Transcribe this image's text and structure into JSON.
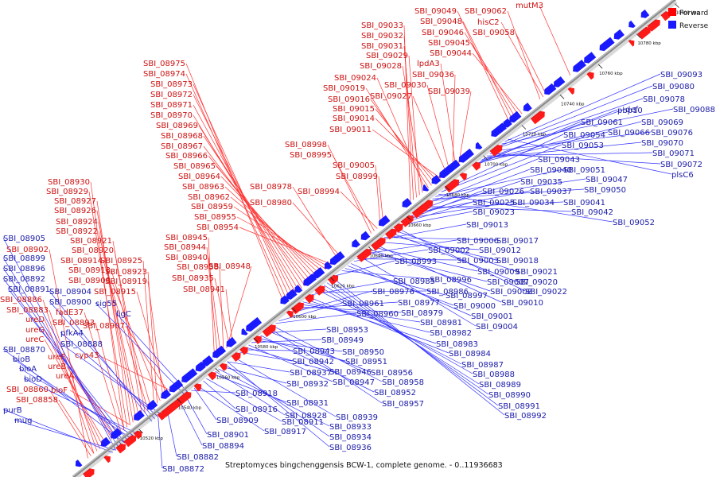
{
  "caption": "Streptomyces bingchenggensis BCW-1, complete genome. - 0..11936683",
  "legend": {
    "forward": "Forward",
    "reverse": "Reverse",
    "forward_color": "#ff0000",
    "reverse_color": "#1a1aff"
  },
  "colors": {
    "axis": "#888888",
    "forward_line": "#ff3333",
    "reverse_line": "#3333ff",
    "forward_label": "#cc1111",
    "reverse_label": "#1a1aa8"
  },
  "ticks": [
    "10520 kbp",
    "10540 kbp",
    "10560 kbp",
    "10580 kbp",
    "10600 kbp",
    "10620 kbp",
    "10640 kbp",
    "10660 kbp",
    "10680 kbp",
    "10700 kbp",
    "10720 kbp",
    "10740 kbp",
    "10760 kbp",
    "10780 kbp",
    "10800 kbp"
  ],
  "forward_labels": [
    "SBI_08975",
    "SBI_08974",
    "SBI_08973",
    "SBI_08972",
    "SBI_08971",
    "SBI_08970",
    "SBI_08969",
    "SBI_08968",
    "SBI_08967",
    "SBI_08966",
    "SBI_08965",
    "SBI_08964",
    "SBI_08963",
    "SBI_08962",
    "SBI_08959",
    "SBI_08955",
    "SBI_08954",
    "SBI_08978",
    "SBI_08980",
    "SBI_08930",
    "SBI_08929",
    "SBI_08927",
    "SBI_08926",
    "SBI_08924",
    "SBI_08922",
    "SBI_08921",
    "SBI_08920",
    "SBI_08914",
    "SBI_08925",
    "SBI_08913",
    "SBI_08923",
    "SBI_08908",
    "SBI_08919",
    "SBI_08915",
    "SBI_08945",
    "SBI_08944",
    "SBI_08940",
    "SBI_08938",
    "SBI_08948",
    "SBI_08935",
    "SBI_08941",
    "SBI_08902",
    "SBI_08886",
    "SBI_08883",
    "ureD",
    "ureG",
    "ureC",
    "ureF",
    "ureB",
    "ureA",
    "fadE37",
    "SBI_08893",
    "SBI_08907",
    "SBI_08860",
    "SBI_08858",
    "bioF",
    "cyp43",
    "SBI_09033",
    "SBI_09032",
    "SBI_09031",
    "SBI_09029",
    "SBI_09028",
    "SBI_09024",
    "SBI_09019",
    "SBI_09016",
    "SBI_09015",
    "SBI_09014",
    "SBI_09011",
    "SBI_09027",
    "SBI_09030",
    "SBI_09036",
    "lpdA3",
    "SBI_09039",
    "SBI_09049",
    "SBI_09048",
    "SBI_09046",
    "SBI_09045",
    "SBI_09044",
    "SBI_09062",
    "hisC2",
    "SBI_09058",
    "mutM3",
    "SBI_08998",
    "SBI_08995",
    "SBI_09005",
    "SBI_08999",
    "SBI_08994"
  ],
  "reverse_labels": [
    "SBI_08905",
    "SBI_08899",
    "SBI_08896",
    "SBI_08892",
    "SBI_08891",
    "SBI_08904",
    "SBI_08900",
    "SBI_08870",
    "SBI_08888",
    "pfkA4",
    "sig55",
    "ligC",
    "bioB",
    "bioA",
    "bioD",
    "purB",
    "mug",
    "SBI_08882",
    "SBI_08872",
    "SBI_08894",
    "SBI_08901",
    "SBI_08909",
    "SBI_08916",
    "SBI_08917",
    "SBI_08918",
    "SBI_08911",
    "SBI_08928",
    "SBI_08931",
    "SBI_08932",
    "SBI_08933",
    "SBI_08934",
    "SBI_08936",
    "SBI_08939",
    "SBI_08937",
    "SBI_08942",
    "SBI_08943",
    "SBI_08946",
    "SBI_08947",
    "SBI_08949",
    "SBI_08950",
    "SBI_08951",
    "SBI_08952",
    "SBI_08953",
    "SBI_08956",
    "SBI_08957",
    "SBI_08958",
    "SBI_08960",
    "SBI_08961",
    "SBI_08976",
    "SBI_08977",
    "SBI_08979",
    "SBI_08981",
    "SBI_08982",
    "SBI_08983",
    "SBI_08984",
    "SBI_08985",
    "SBI_08986",
    "SBI_08987",
    "SBI_08988",
    "SBI_08989",
    "SBI_08990",
    "SBI_08991",
    "SBI_08992",
    "SBI_08993",
    "SBI_08996",
    "SBI_08997",
    "SBI_09000",
    "SBI_09001",
    "SBI_09002",
    "SBI_09003",
    "SBI_09004",
    "SBI_09006",
    "SBI_09007",
    "SBI_09008",
    "SBI_09009",
    "SBI_09010",
    "SBI_09012",
    "SBI_09013",
    "SBI_09017",
    "SBI_09018",
    "SBI_09020",
    "SBI_09021",
    "SBI_09022",
    "SBI_09023",
    "SBI_09025",
    "SBI_09026",
    "SBI_09034",
    "SBI_09035",
    "SBI_09037",
    "SBI_09040",
    "SBI_09041",
    "SBI_09042",
    "SBI_09043",
    "SBI_09047",
    "SBI_09050",
    "SBI_09051",
    "SBI_09052",
    "SBI_09053",
    "SBI_09054",
    "SBI_09061",
    "SBI_09066",
    "SBI_09069",
    "SBI_09070",
    "SBI_09071",
    "SBI_09072",
    "SBI_09076",
    "SBI_09078",
    "SBI_09080",
    "SBI_09088",
    "SBI_09093",
    "pbp10",
    "def",
    "plsC6"
  ]
}
